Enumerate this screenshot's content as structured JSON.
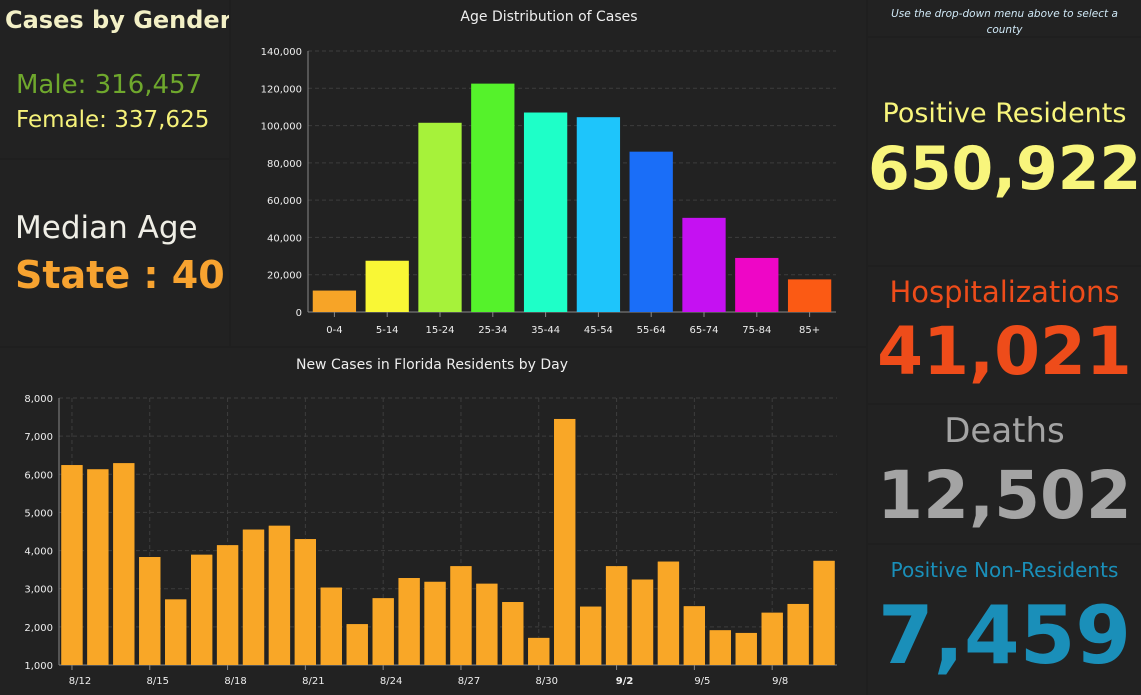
{
  "gender": {
    "title": "Cases by Gender",
    "male": "Male: 316,457",
    "female": "Female: 337,625"
  },
  "median": {
    "label": "Median Age",
    "value": "State : 40"
  },
  "age_chart": {
    "chart_data": {
      "type": "bar",
      "title": "Age Distribution of Cases",
      "categories": [
        "0-4",
        "5-14",
        "15-24",
        "25-34",
        "35-44",
        "45-54",
        "55-64",
        "65-74",
        "75-84",
        "85+"
      ],
      "values": [
        11500,
        27500,
        101500,
        122500,
        107000,
        104500,
        86000,
        50500,
        29000,
        17500
      ],
      "colors": [
        "#f7a427",
        "#f9f735",
        "#a6f23a",
        "#55f22b",
        "#1effc8",
        "#1ec5fb",
        "#1a6ef8",
        "#c511f2",
        "#ee06c6",
        "#fb5a14"
      ],
      "ylim": [
        0,
        140000
      ],
      "yticks": [
        "0",
        "20,000",
        "40,000",
        "60,000",
        "80,000",
        "100,000",
        "120,000",
        "140,000"
      ],
      "grid": true
    }
  },
  "daily_chart": {
    "chart_data": {
      "type": "bar",
      "title": "New Cases in Florida Residents by Day",
      "x_labels": [
        "8/12",
        "8/15",
        "8/18",
        "8/21",
        "8/24",
        "8/27",
        "8/30",
        "9/2",
        "9/5",
        "9/8"
      ],
      "values": [
        6240,
        6130,
        6290,
        3830,
        2720,
        3890,
        4140,
        4550,
        4650,
        4300,
        3030,
        2070,
        2750,
        3280,
        3180,
        3590,
        3130,
        2650,
        1710,
        7450,
        2530,
        3590,
        3240,
        3710,
        2540,
        1910,
        1840,
        2370,
        2600,
        3730
      ],
      "bar_color": "#f9a727",
      "ylim": [
        1000,
        8000
      ],
      "yticks": [
        "1,000",
        "2,000",
        "3,000",
        "4,000",
        "5,000",
        "6,000",
        "7,000",
        "8,000"
      ],
      "grid": true
    }
  },
  "county": {
    "note": "Use the drop-down menu above to select a county"
  },
  "stats": {
    "positive_label": "Positive Residents",
    "positive_value": "650,922",
    "hosp_label": "Hospitalizations",
    "hosp_value": "41,021",
    "deaths_label": "Deaths",
    "deaths_value": "12,502",
    "nonres_label": "Positive Non-Residents",
    "nonres_value": "7,459"
  },
  "colors": {
    "male": "#6fa82d",
    "female": "#f6f27a",
    "median": "#f7a330",
    "positive": "#f8f57c",
    "hosp": "#ee4c1a",
    "deaths": "#a4a4a4",
    "nonres": "#1a8fb9"
  }
}
